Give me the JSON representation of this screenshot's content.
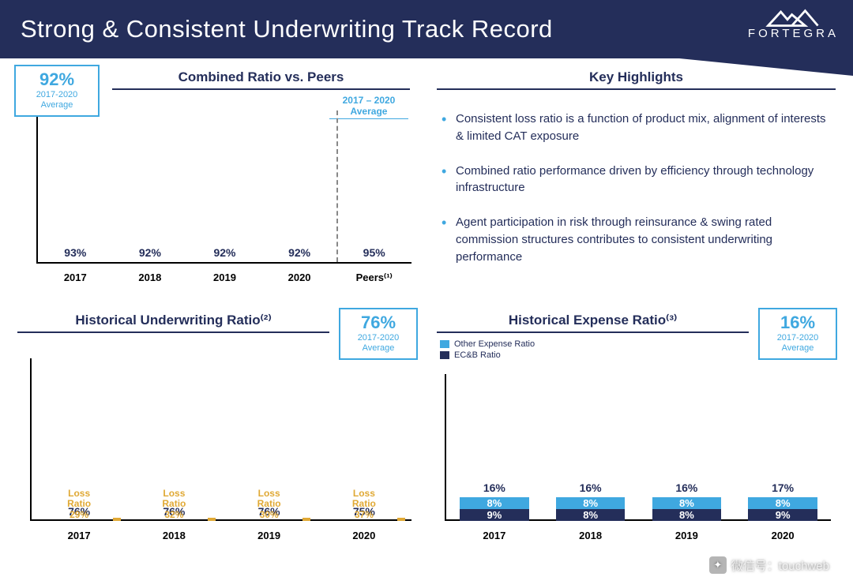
{
  "header": {
    "title": "Strong & Consistent Underwriting Track Record",
    "brand": "FORTEGRA",
    "header_bg": "#242e5a",
    "brand_color": "#ffffff"
  },
  "colors": {
    "navy": "#242e5a",
    "accent": "#3fa8e0",
    "peer": "#e85b5b",
    "orange": "#e0a935",
    "light_blue": "#3fa8e0"
  },
  "chart1": {
    "title": "Combined Ratio vs. Peers",
    "stat_value": "92%",
    "stat_label_1": "2017-2020",
    "stat_label_2": "Average",
    "avg_header": "2017 – 2020 Average",
    "max": 100,
    "bars": [
      {
        "label": "2017",
        "value": 93,
        "display": "93%",
        "color": "#242e5a"
      },
      {
        "label": "2018",
        "value": 92,
        "display": "92%",
        "color": "#242e5a"
      },
      {
        "label": "2019",
        "value": 92,
        "display": "92%",
        "color": "#242e5a"
      },
      {
        "label": "2020",
        "value": 92,
        "display": "92%",
        "color": "#242e5a"
      },
      {
        "label": "Peers⁽¹⁾",
        "value": 95,
        "display": "95%",
        "color": "#e85b5b"
      }
    ]
  },
  "highlights": {
    "title": "Key Highlights",
    "items": [
      "Consistent loss ratio is a function of product mix, alignment of interests & limited CAT exposure",
      "Combined ratio performance driven by efficiency through technology infrastructure",
      "Agent participation in risk through reinsurance & swing rated commission structures contributes to consistent underwriting performance"
    ]
  },
  "chart2": {
    "title": "Historical Underwriting Ratio⁽²⁾",
    "stat_value": "76%",
    "stat_label_1": "2017-2020",
    "stat_label_2": "Average",
    "max": 80,
    "bars": [
      {
        "label": "2017",
        "value": 76,
        "display": "76%",
        "loss": 29,
        "loss_display": "29%",
        "color": "#242e5a"
      },
      {
        "label": "2018",
        "value": 76,
        "display": "76%",
        "loss": 32,
        "loss_display": "32%",
        "color": "#242e5a"
      },
      {
        "label": "2019",
        "value": 76,
        "display": "76%",
        "loss": 30,
        "loss_display": "30%",
        "color": "#242e5a"
      },
      {
        "label": "2020",
        "value": 75,
        "display": "75%",
        "loss": 37,
        "loss_display": "37%",
        "color": "#242e5a"
      }
    ],
    "loss_word1": "Loss",
    "loss_word2": "Ratio"
  },
  "chart3": {
    "title": "Historical Expense Ratio⁽³⁾",
    "stat_value": "16%",
    "stat_label_1": "2017-2020",
    "stat_label_2": "Average",
    "legend": [
      {
        "label": "Other Expense Ratio",
        "color": "#3fa8e0"
      },
      {
        "label": "EC&B Ratio",
        "color": "#242e5a"
      }
    ],
    "max": 20,
    "bars": [
      {
        "label": "2017",
        "total": "16%",
        "segments": [
          {
            "v": 8,
            "d": "8%",
            "c": "#3fa8e0"
          },
          {
            "v": 9,
            "d": "9%",
            "c": "#242e5a"
          }
        ]
      },
      {
        "label": "2018",
        "total": "16%",
        "segments": [
          {
            "v": 8,
            "d": "8%",
            "c": "#3fa8e0"
          },
          {
            "v": 8,
            "d": "8%",
            "c": "#242e5a"
          }
        ]
      },
      {
        "label": "2019",
        "total": "16%",
        "segments": [
          {
            "v": 8,
            "d": "8%",
            "c": "#3fa8e0"
          },
          {
            "v": 8,
            "d": "8%",
            "c": "#242e5a"
          }
        ]
      },
      {
        "label": "2020",
        "total": "17%",
        "segments": [
          {
            "v": 8,
            "d": "8%",
            "c": "#3fa8e0"
          },
          {
            "v": 9,
            "d": "9%",
            "c": "#242e5a"
          }
        ]
      }
    ]
  },
  "watermark": {
    "prefix": "微信号：",
    "id": "touchweb"
  }
}
